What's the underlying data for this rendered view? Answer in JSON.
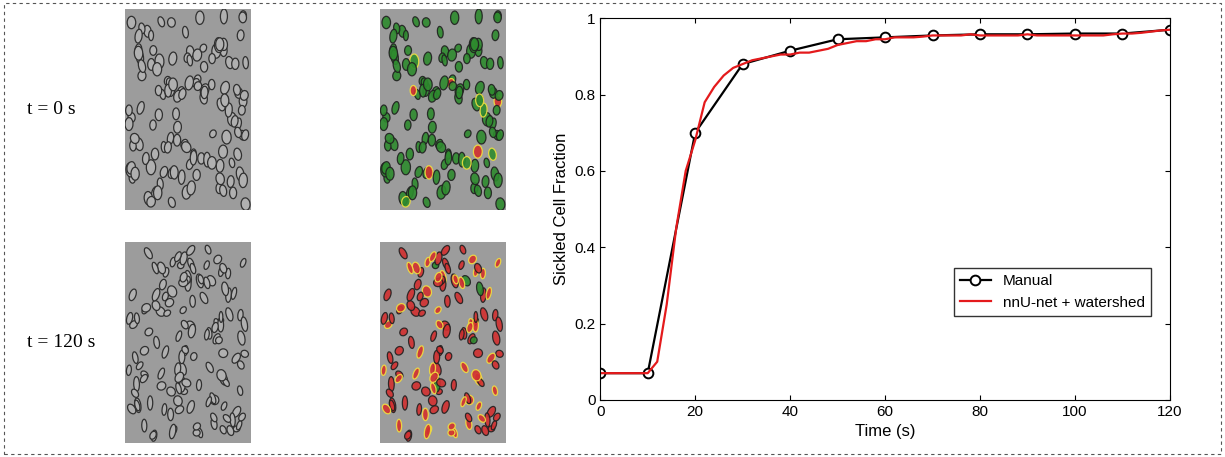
{
  "image_labels": [
    "t = 0 s",
    "t = 120 s"
  ],
  "chart_data": {
    "type": "line",
    "xlabel": "Time (s)",
    "ylabel": "Sickled Cell Fraction",
    "xlim": [
      0,
      120
    ],
    "xticks": [
      0,
      20,
      40,
      60,
      80,
      100,
      120
    ],
    "ylim": [
      0,
      1
    ],
    "yticks": [
      0,
      0.2,
      0.4,
      0.6,
      0.8,
      1
    ],
    "grid": false,
    "legend": "lower right",
    "series": [
      {
        "name": "Manual",
        "color": "#000000",
        "marker": "o",
        "line_style": "solid",
        "x": [
          0,
          10,
          20,
          30,
          40,
          50,
          60,
          70,
          80,
          90,
          100,
          110,
          120
        ],
        "values": [
          0.07,
          0.07,
          0.7,
          0.88,
          0.915,
          0.945,
          0.95,
          0.955,
          0.958,
          0.958,
          0.96,
          0.96,
          0.97
        ]
      },
      {
        "name": "nnU-net + watershed",
        "color": "#e41a1c",
        "line_style": "solid",
        "x": [
          0,
          2,
          4,
          6,
          8,
          10,
          12,
          14,
          16,
          18,
          20,
          22,
          24,
          26,
          28,
          30,
          32,
          34,
          36,
          38,
          40,
          42,
          44,
          46,
          48,
          50,
          52,
          54,
          56,
          58,
          60,
          62,
          64,
          66,
          68,
          70,
          72,
          74,
          76,
          78,
          80,
          82,
          84,
          86,
          88,
          90,
          92,
          94,
          96,
          98,
          100,
          102,
          104,
          106,
          108,
          110,
          112,
          114,
          116,
          118,
          120
        ],
        "values": [
          0.07,
          0.07,
          0.07,
          0.07,
          0.07,
          0.07,
          0.1,
          0.25,
          0.45,
          0.6,
          0.68,
          0.78,
          0.82,
          0.85,
          0.87,
          0.88,
          0.89,
          0.895,
          0.9,
          0.905,
          0.905,
          0.91,
          0.91,
          0.915,
          0.92,
          0.93,
          0.935,
          0.94,
          0.94,
          0.945,
          0.945,
          0.95,
          0.95,
          0.95,
          0.952,
          0.955,
          0.955,
          0.955,
          0.955,
          0.958,
          0.955,
          0.955,
          0.955,
          0.955,
          0.955,
          0.958,
          0.955,
          0.955,
          0.955,
          0.955,
          0.955,
          0.955,
          0.955,
          0.955,
          0.958,
          0.96,
          0.96,
          0.962,
          0.965,
          0.968,
          0.97
        ]
      }
    ]
  }
}
